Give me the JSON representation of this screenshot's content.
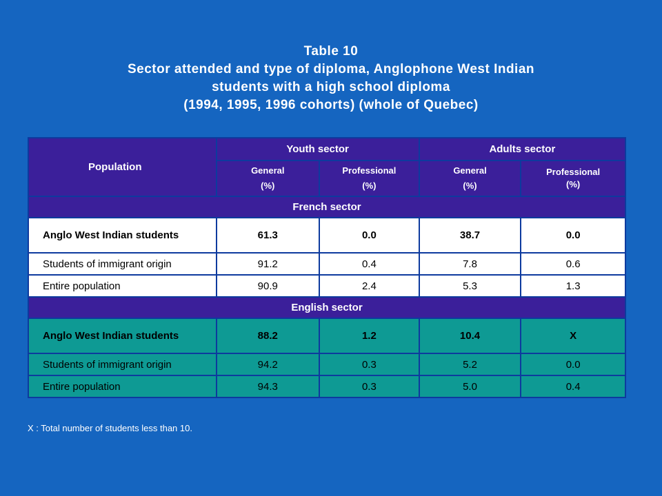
{
  "title": {
    "line1": "Table 10",
    "line2": "Sector attended and type of diploma, Anglophone West Indian",
    "line3": "students with a high school diploma",
    "line4": "(1994, 1995, 1996 cohorts) (whole of Quebec)"
  },
  "table": {
    "population_header": "Population",
    "youth_header": "Youth sector",
    "adults_header": "Adults sector",
    "sub_headers": [
      {
        "name": "General",
        "unit": "(%)"
      },
      {
        "name": "Professional",
        "unit": "(%)"
      },
      {
        "name": "General",
        "unit": "(%)"
      },
      {
        "name": "Professional",
        "unit": "(%)"
      }
    ],
    "french_sector": {
      "label": "French sector",
      "rows": [
        {
          "label": "Anglo West Indian students",
          "values": [
            "61.3",
            "0.0",
            "38.7",
            "0.0"
          ]
        },
        {
          "label": "Students of immigrant origin",
          "values": [
            "91.2",
            "0.4",
            "7.8",
            "0.6"
          ]
        },
        {
          "label": "Entire population",
          "values": [
            "90.9",
            "2.4",
            "5.3",
            "1.3"
          ]
        }
      ]
    },
    "english_sector": {
      "label": "English sector",
      "rows": [
        {
          "label": "Anglo West Indian students",
          "values": [
            "88.2",
            "1.2",
            "10.4",
            "X"
          ]
        },
        {
          "label": "Students of immigrant origin",
          "values": [
            "94.2",
            "0.3",
            "5.2",
            "0.0"
          ]
        },
        {
          "label": "Entire population",
          "values": [
            "94.3",
            "0.3",
            "5.0",
            "0.4"
          ]
        }
      ]
    }
  },
  "footnote": "X :  Total number of students less than 10."
}
